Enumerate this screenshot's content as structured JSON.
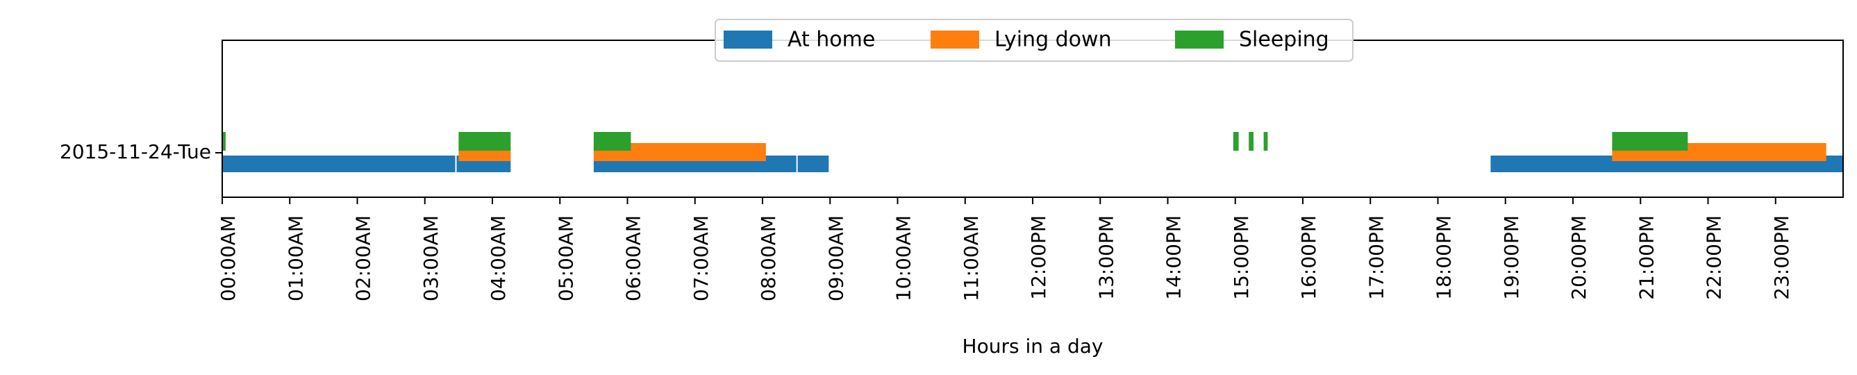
{
  "chart_data": {
    "type": "timeline",
    "title": "",
    "xlabel": "Hours in a day",
    "ylabel": "",
    "xlim": [
      0,
      24
    ],
    "grid": false,
    "legend_position": "top-center",
    "row_label": "2015-11-24-Tue",
    "x_tick_labels": [
      "00:00AM",
      "01:00AM",
      "02:00AM",
      "03:00AM",
      "04:00AM",
      "05:00AM",
      "06:00AM",
      "07:00AM",
      "08:00AM",
      "09:00AM",
      "10:00AM",
      "11:00AM",
      "12:00PM",
      "13:00PM",
      "14:00PM",
      "15:00PM",
      "16:00PM",
      "17:00PM",
      "18:00PM",
      "19:00PM",
      "20:00PM",
      "21:00PM",
      "22:00PM",
      "23:00PM"
    ],
    "series": [
      {
        "name": "At home",
        "color": "#1f77b4",
        "intervals_hours": [
          [
            0.0,
            3.45
          ],
          [
            3.47,
            4.27
          ],
          [
            5.5,
            8.5
          ],
          [
            8.52,
            8.98
          ],
          [
            18.78,
            24.0
          ]
        ]
      },
      {
        "name": "Lying down",
        "color": "#ff7f0e",
        "intervals_hours": [
          [
            3.5,
            4.27
          ],
          [
            5.5,
            8.05
          ],
          [
            20.58,
            23.75
          ]
        ]
      },
      {
        "name": "Sleeping",
        "color": "#2ca02c",
        "intervals_hours": [
          [
            0.0,
            0.05
          ],
          [
            3.5,
            4.27
          ],
          [
            5.5,
            6.05
          ],
          [
            14.97,
            15.05
          ],
          [
            15.2,
            15.27
          ],
          [
            15.42,
            15.48
          ],
          [
            20.58,
            21.7
          ]
        ]
      }
    ]
  }
}
